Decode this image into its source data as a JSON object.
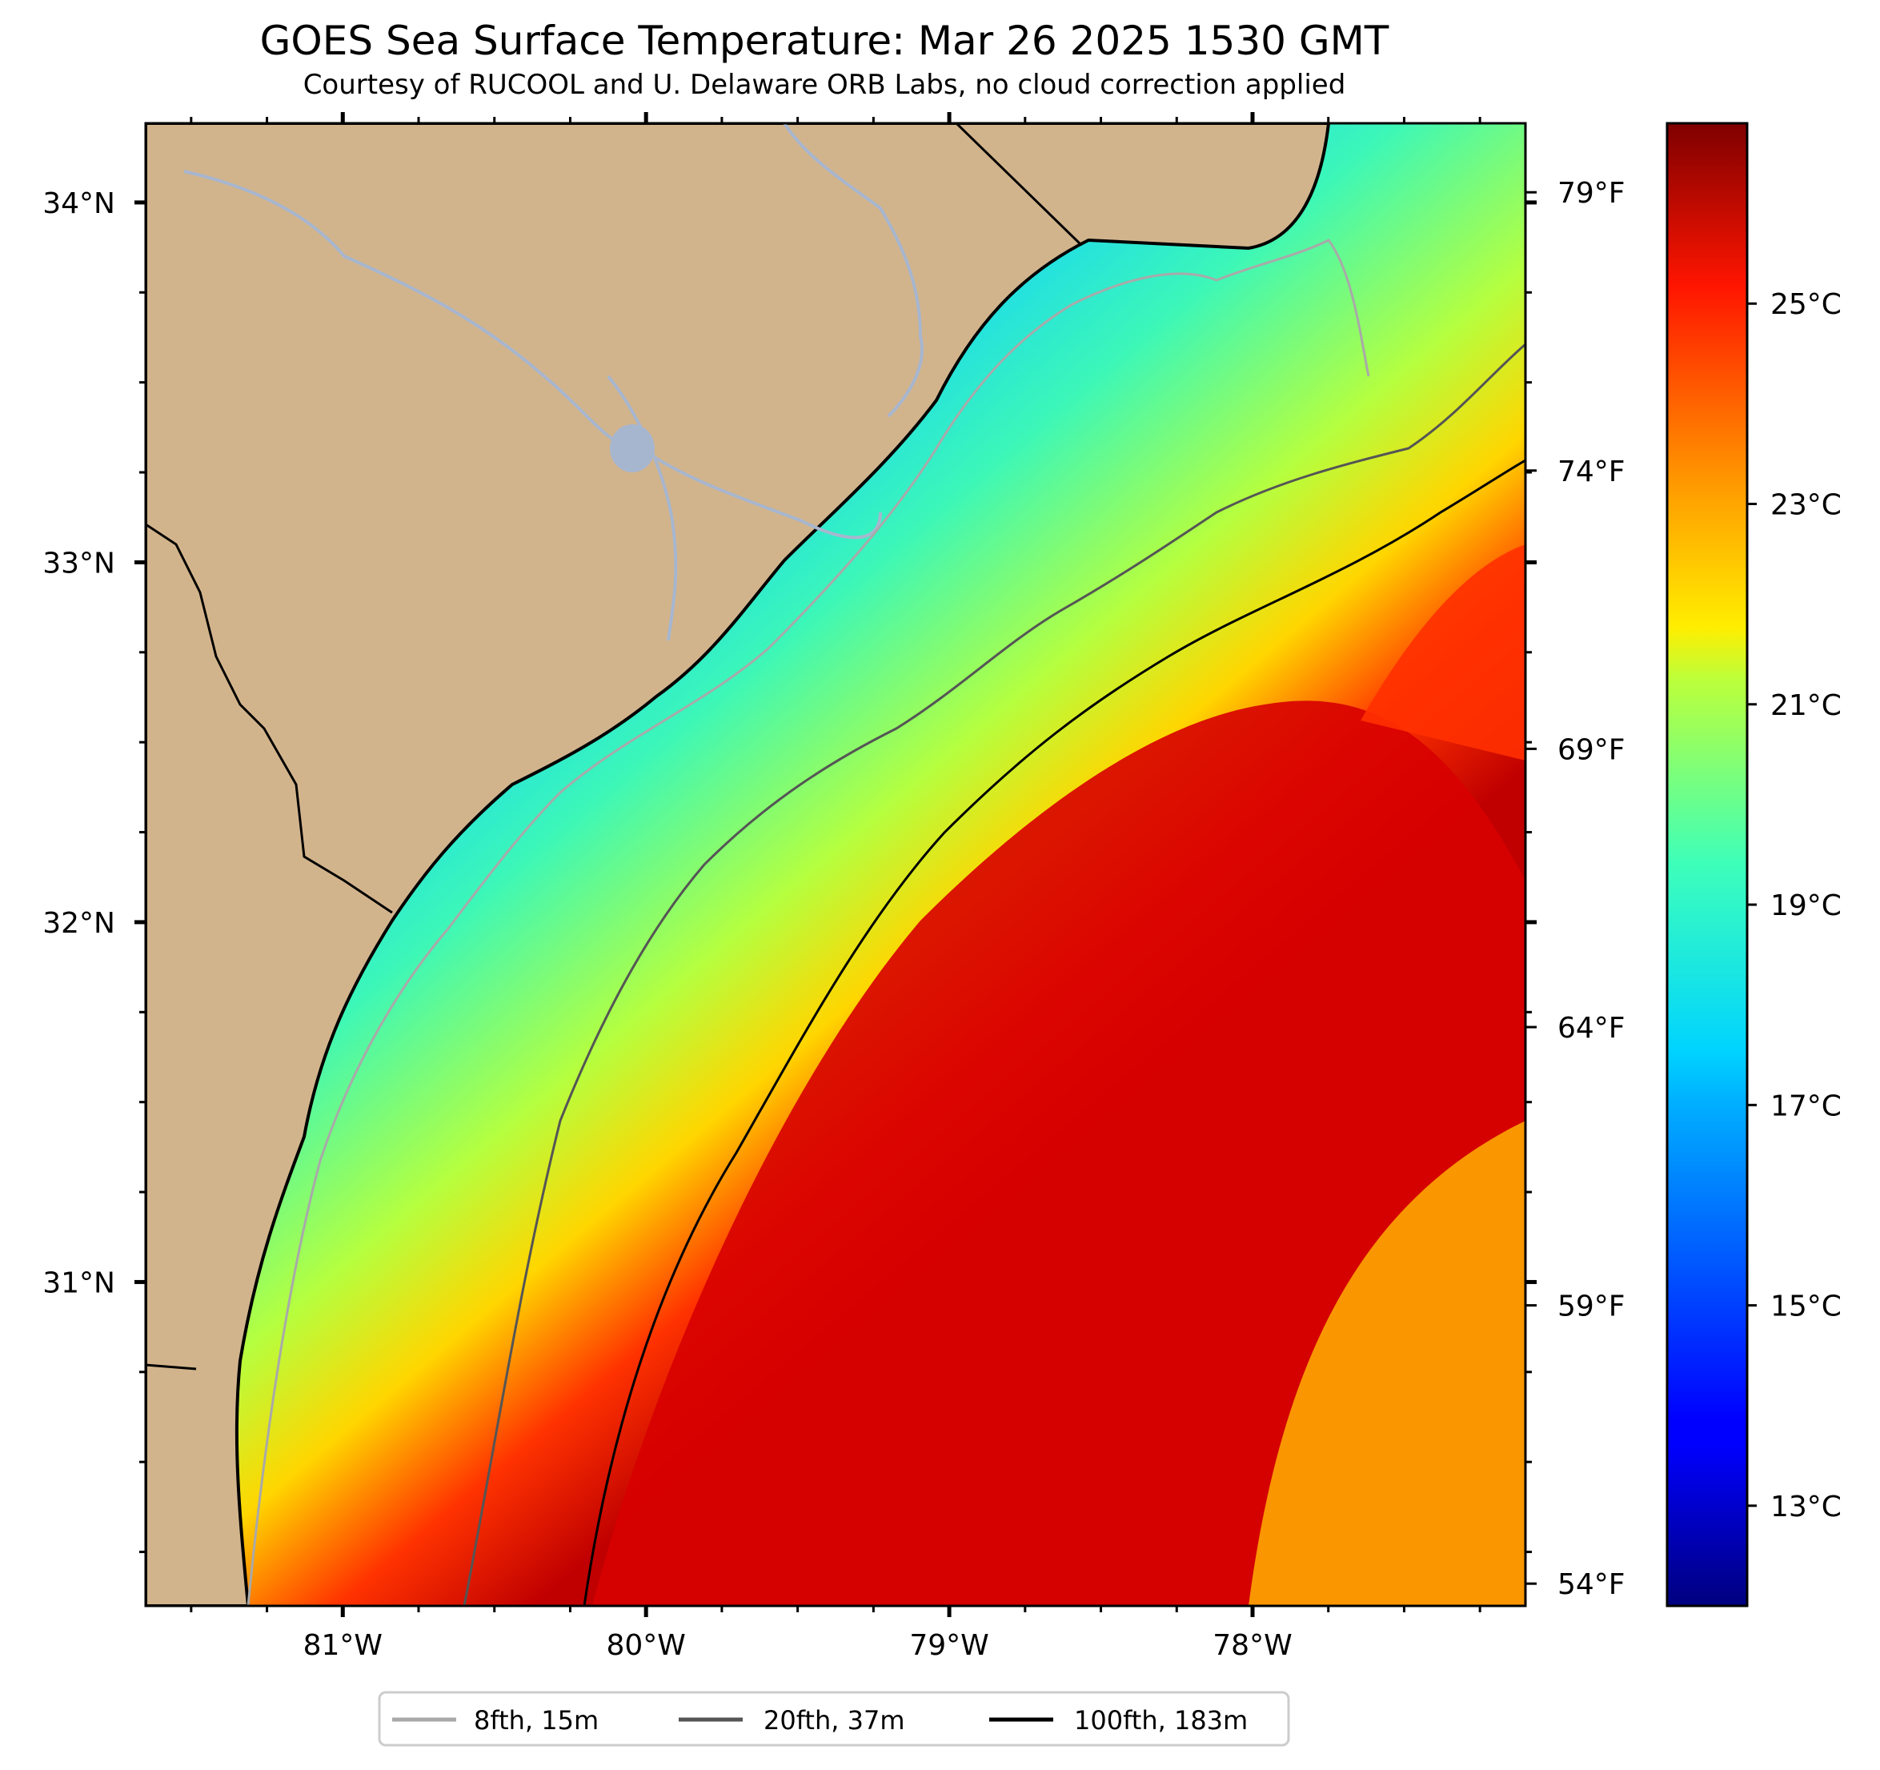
{
  "title": "GOES Sea Surface Temperature: Mar 26 2025 1530 GMT",
  "subtitle": "Courtesy of RUCOOL and U. Delaware ORB Labs, no cloud correction applied",
  "map": {
    "lon_range": [
      -81.65,
      -77.1
    ],
    "lat_range": [
      30.1,
      34.22
    ],
    "lon_ticks": [
      {
        "lon": -81,
        "label": "81°W"
      },
      {
        "lon": -80,
        "label": "80°W"
      },
      {
        "lon": -79,
        "label": "79°W"
      },
      {
        "lon": -78,
        "label": "78°W"
      }
    ],
    "lat_ticks": [
      {
        "lat": 34,
        "label": "34°N"
      },
      {
        "lat": 33,
        "label": "33°N"
      },
      {
        "lat": 32,
        "label": "32°N"
      },
      {
        "lat": 31,
        "label": "31°N"
      }
    ],
    "land_color": "#d2b48c",
    "water_color": "#a7b6cf"
  },
  "colorbar": {
    "range_c": [
      12,
      26.8
    ],
    "celsius_ticks": [
      {
        "value": 13,
        "label": "13°C"
      },
      {
        "value": 15,
        "label": "15°C"
      },
      {
        "value": 17,
        "label": "17°C"
      },
      {
        "value": 19,
        "label": "19°C"
      },
      {
        "value": 21,
        "label": "21°C"
      },
      {
        "value": 23,
        "label": "23°C"
      },
      {
        "value": 25,
        "label": "25°C"
      }
    ],
    "fahrenheit_ticks": [
      {
        "value": 54,
        "label": "54°F"
      },
      {
        "value": 59,
        "label": "59°F"
      },
      {
        "value": 64,
        "label": "64°F"
      },
      {
        "value": 69,
        "label": "69°F"
      },
      {
        "value": 74,
        "label": "74°F"
      },
      {
        "value": 79,
        "label": "79°F"
      }
    ]
  },
  "legend": {
    "items": [
      {
        "label": "8fth, 15m",
        "color": "#a9a9a9"
      },
      {
        "label": "20fth, 37m",
        "color": "#555555"
      },
      {
        "label": "100fth, 183m",
        "color": "#000000"
      }
    ]
  }
}
